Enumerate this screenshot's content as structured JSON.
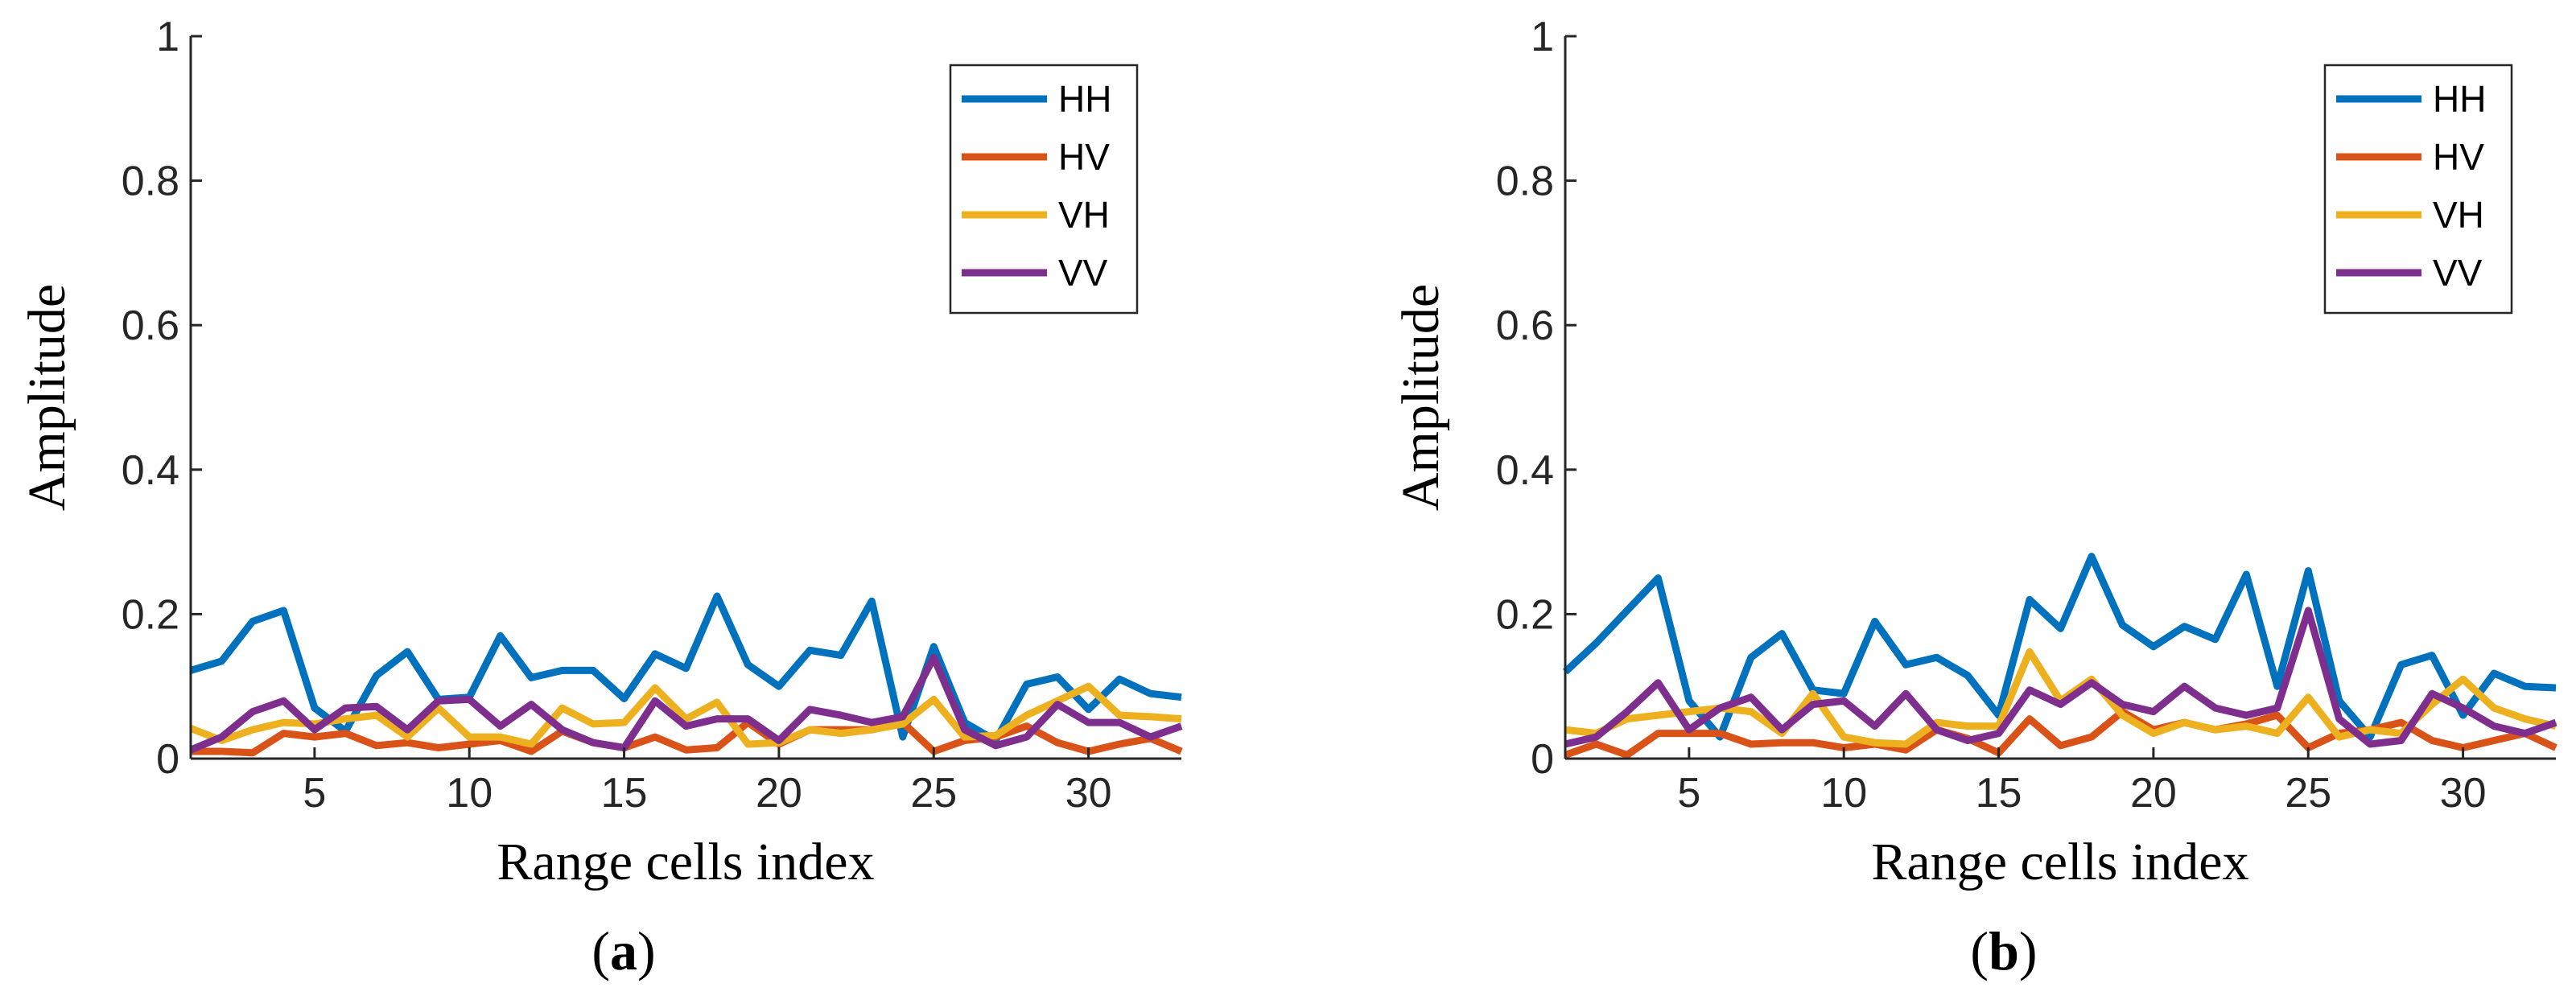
{
  "figure": {
    "panel_labels": [
      "a",
      "b"
    ]
  },
  "chart_data": [
    {
      "type": "line",
      "panel": "(a)",
      "title": "",
      "xlabel": "Range cells index",
      "ylabel": "Amplitude",
      "xlim": [
        1,
        33
      ],
      "ylim": [
        0,
        1
      ],
      "xticks": [
        5,
        10,
        15,
        20,
        25,
        30
      ],
      "yticks": [
        0,
        0.2,
        0.4,
        0.6,
        0.8,
        1
      ],
      "ytick_labels": [
        "0",
        "0.2",
        "0.4",
        "0.6",
        "0.8",
        "1"
      ],
      "legend_position": "top-right",
      "x": [
        1,
        2,
        3,
        4,
        5,
        6,
        7,
        8,
        9,
        10,
        11,
        12,
        13,
        14,
        15,
        16,
        17,
        18,
        19,
        20,
        21,
        22,
        23,
        24,
        25,
        26,
        27,
        28,
        29,
        30,
        31,
        32,
        33
      ],
      "series": [
        {
          "name": "HH",
          "color": "#0072BD",
          "values": [
            0.122,
            0.135,
            0.19,
            0.205,
            0.07,
            0.038,
            0.115,
            0.148,
            0.082,
            0.085,
            0.17,
            0.112,
            0.122,
            0.122,
            0.083,
            0.145,
            0.125,
            0.225,
            0.13,
            0.1,
            0.15,
            0.143,
            0.218,
            0.03,
            0.155,
            0.05,
            0.025,
            0.103,
            0.113,
            0.068,
            0.11,
            0.09,
            0.085
          ]
        },
        {
          "name": "HV",
          "color": "#D95319",
          "values": [
            0.01,
            0.01,
            0.008,
            0.035,
            0.03,
            0.035,
            0.018,
            0.022,
            0.015,
            0.02,
            0.025,
            0.01,
            0.038,
            0.022,
            0.015,
            0.03,
            0.012,
            0.015,
            0.05,
            0.02,
            0.04,
            0.04,
            0.04,
            0.05,
            0.01,
            0.025,
            0.03,
            0.045,
            0.022,
            0.01,
            0.02,
            0.028,
            0.01
          ]
        },
        {
          "name": "VH",
          "color": "#EDB120",
          "values": [
            0.042,
            0.025,
            0.04,
            0.05,
            0.048,
            0.055,
            0.06,
            0.03,
            0.07,
            0.03,
            0.03,
            0.02,
            0.07,
            0.048,
            0.05,
            0.098,
            0.055,
            0.078,
            0.02,
            0.022,
            0.04,
            0.035,
            0.04,
            0.048,
            0.082,
            0.03,
            0.032,
            0.06,
            0.08,
            0.1,
            0.06,
            0.058,
            0.055
          ]
        },
        {
          "name": "VV",
          "color": "#7E2F8E",
          "values": [
            0.012,
            0.03,
            0.065,
            0.08,
            0.04,
            0.07,
            0.072,
            0.04,
            0.08,
            0.082,
            0.045,
            0.075,
            0.04,
            0.022,
            0.015,
            0.08,
            0.045,
            0.055,
            0.055,
            0.025,
            0.068,
            0.06,
            0.05,
            0.058,
            0.14,
            0.04,
            0.018,
            0.03,
            0.075,
            0.05,
            0.05,
            0.03,
            0.045
          ]
        }
      ]
    },
    {
      "type": "line",
      "panel": "(b)",
      "title": "",
      "xlabel": "Range cells index",
      "ylabel": "Amplitude",
      "xlim": [
        1,
        33
      ],
      "ylim": [
        0,
        1
      ],
      "xticks": [
        5,
        10,
        15,
        20,
        25,
        30
      ],
      "yticks": [
        0,
        0.2,
        0.4,
        0.6,
        0.8,
        1
      ],
      "ytick_labels": [
        "0",
        "0.2",
        "0.4",
        "0.6",
        "0.8",
        "1"
      ],
      "legend_position": "top-right",
      "x": [
        1,
        2,
        3,
        4,
        5,
        6,
        7,
        8,
        9,
        10,
        11,
        12,
        13,
        14,
        15,
        16,
        17,
        18,
        19,
        20,
        21,
        22,
        23,
        24,
        25,
        26,
        27,
        28,
        29,
        30,
        31,
        32,
        33
      ],
      "series": [
        {
          "name": "HH",
          "color": "#0072BD",
          "values": [
            0.12,
            0.16,
            0.205,
            0.25,
            0.08,
            0.03,
            0.14,
            0.173,
            0.095,
            0.09,
            0.19,
            0.13,
            0.14,
            0.115,
            0.06,
            0.22,
            0.18,
            0.28,
            0.185,
            0.155,
            0.183,
            0.165,
            0.255,
            0.1,
            0.26,
            0.08,
            0.03,
            0.13,
            0.143,
            0.06,
            0.118,
            0.1,
            0.098
          ]
        },
        {
          "name": "HV",
          "color": "#D95319",
          "values": [
            0.005,
            0.02,
            0.005,
            0.035,
            0.035,
            0.035,
            0.02,
            0.022,
            0.022,
            0.015,
            0.02,
            0.012,
            0.04,
            0.028,
            0.008,
            0.055,
            0.018,
            0.03,
            0.065,
            0.04,
            0.05,
            0.04,
            0.048,
            0.06,
            0.015,
            0.035,
            0.04,
            0.05,
            0.025,
            0.015,
            0.025,
            0.035,
            0.015
          ]
        },
        {
          "name": "VH",
          "color": "#EDB120",
          "values": [
            0.04,
            0.035,
            0.055,
            0.06,
            0.065,
            0.07,
            0.065,
            0.035,
            0.09,
            0.03,
            0.022,
            0.02,
            0.05,
            0.045,
            0.045,
            0.148,
            0.08,
            0.11,
            0.06,
            0.035,
            0.05,
            0.04,
            0.045,
            0.035,
            0.085,
            0.03,
            0.04,
            0.035,
            0.075,
            0.11,
            0.07,
            0.055,
            0.045
          ]
        },
        {
          "name": "VV",
          "color": "#7E2F8E",
          "values": [
            0.02,
            0.03,
            0.065,
            0.105,
            0.04,
            0.07,
            0.085,
            0.04,
            0.075,
            0.08,
            0.045,
            0.09,
            0.04,
            0.025,
            0.035,
            0.095,
            0.075,
            0.105,
            0.075,
            0.065,
            0.1,
            0.07,
            0.06,
            0.07,
            0.205,
            0.055,
            0.02,
            0.025,
            0.09,
            0.07,
            0.045,
            0.035,
            0.05
          ]
        }
      ]
    }
  ]
}
